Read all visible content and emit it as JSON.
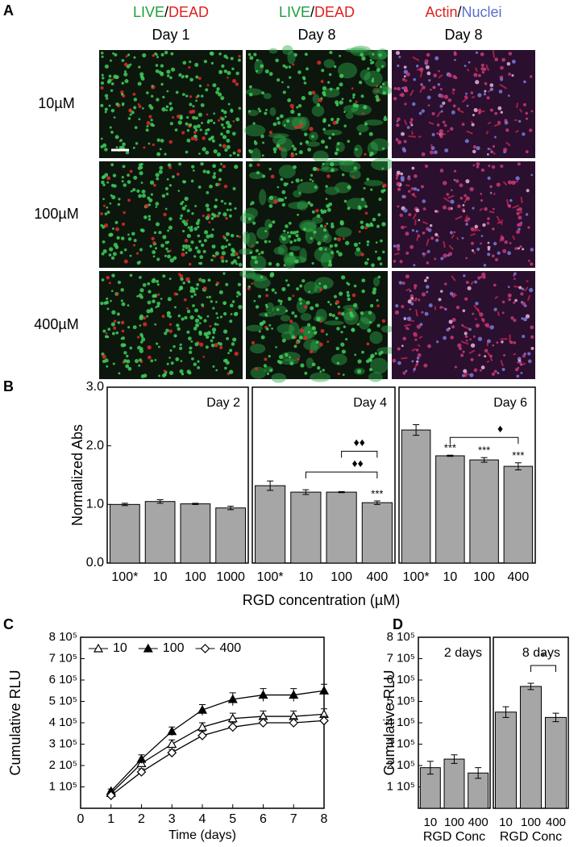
{
  "panel_labels": [
    "A",
    "B",
    "C",
    "D"
  ],
  "panel_a": {
    "columns": [
      {
        "stain": [
          {
            "text": "LIVE",
            "color": "#1f9e3c"
          },
          {
            "text": "/",
            "color": "#000000"
          },
          {
            "text": "DEAD",
            "color": "#e0201c"
          }
        ],
        "day": "Day 1",
        "palette": "live-dead"
      },
      {
        "stain": [
          {
            "text": "LIVE",
            "color": "#1f9e3c"
          },
          {
            "text": "/",
            "color": "#000000"
          },
          {
            "text": "DEAD",
            "color": "#e0201c"
          }
        ],
        "day": "Day 8",
        "palette": "live-dead-spread"
      },
      {
        "stain": [
          {
            "text": "Actin",
            "color": "#e0201c"
          },
          {
            "text": "/",
            "color": "#000000"
          },
          {
            "text": "Nuclei",
            "color": "#5a6fc8"
          }
        ],
        "day": "Day 8",
        "palette": "actin-nuclei"
      }
    ],
    "rows": [
      "10µM",
      "100µM",
      "400µM"
    ]
  },
  "chart_data": [
    {
      "type": "bar",
      "panel": "B",
      "title": "Day 2",
      "ylabel": "Normalized Abs",
      "categories": [
        "100*",
        "10",
        "100",
        "1000"
      ],
      "values": [
        1.0,
        1.05,
        1.01,
        0.94
      ],
      "errors": [
        0.02,
        0.03,
        0.01,
        0.03
      ],
      "color": "#a6a6a6",
      "ylim": [
        0,
        3
      ],
      "yticks": [
        {
          "value": 0,
          "label": "0.0"
        },
        {
          "value": 1,
          "label": "1.0"
        },
        {
          "value": 2,
          "label": "2.0"
        },
        {
          "value": 3,
          "label": "3.0"
        }
      ]
    },
    {
      "type": "bar",
      "panel": "B",
      "title": "Day 4",
      "xlabel": "RGD concentration (µM)",
      "categories": [
        "100*",
        "10",
        "100",
        "400"
      ],
      "values": [
        1.32,
        1.21,
        1.21,
        1.03
      ],
      "errors": [
        0.08,
        0.04,
        0.01,
        0.03
      ],
      "color": "#a6a6a6",
      "ylim": [
        0,
        3
      ],
      "annotations": [
        {
          "index": 3,
          "text": "***"
        }
      ],
      "brackets": [
        {
          "from": 1,
          "to": 3,
          "text": "♦♦"
        },
        {
          "from": 2,
          "to": 3,
          "text": "♦♦"
        }
      ]
    },
    {
      "type": "bar",
      "panel": "B",
      "title": "Day 6",
      "categories": [
        "100*",
        "10",
        "100",
        "400"
      ],
      "values": [
        2.27,
        1.83,
        1.76,
        1.65
      ],
      "errors": [
        0.09,
        0.01,
        0.04,
        0.06
      ],
      "color": "#a6a6a6",
      "ylim": [
        0,
        3
      ],
      "annotations": [
        {
          "index": 1,
          "text": "***"
        },
        {
          "index": 2,
          "text": "***"
        },
        {
          "index": 3,
          "text": "***"
        }
      ],
      "brackets": [
        {
          "from": 1,
          "to": 3,
          "text": "♦"
        }
      ]
    },
    {
      "type": "line",
      "panel": "C",
      "xlabel": "Time (days)",
      "ylabel": "Cumulative RLU",
      "x": [
        1,
        2,
        3,
        4,
        5,
        6,
        7,
        8
      ],
      "xlim": [
        0,
        8
      ],
      "xticks": [
        0,
        1,
        2,
        3,
        4,
        5,
        6,
        7,
        8
      ],
      "ylim": [
        0,
        800000
      ],
      "yticks": [
        {
          "value": 100000,
          "label": "1 10⁵"
        },
        {
          "value": 200000,
          "label": "2 10⁵"
        },
        {
          "value": 300000,
          "label": "3 10⁵"
        },
        {
          "value": 400000,
          "label": "4 10⁵"
        },
        {
          "value": 500000,
          "label": "5 10⁵"
        },
        {
          "value": 600000,
          "label": "6 10⁵"
        },
        {
          "value": 700000,
          "label": "7 10⁵"
        },
        {
          "value": 800000,
          "label": "8 10⁵"
        }
      ],
      "legend": "upper left",
      "series": [
        {
          "name": "10",
          "color": "#000000",
          "marker": "triangle-open",
          "values": [
            70000,
            210000,
            300000,
            380000,
            420000,
            430000,
            430000,
            440000
          ],
          "errors": [
            10000,
            15000,
            20000,
            20000,
            25000,
            25000,
            25000,
            25000
          ]
        },
        {
          "name": "100",
          "color": "#000000",
          "marker": "triangle-filled",
          "values": [
            80000,
            230000,
            360000,
            460000,
            510000,
            530000,
            530000,
            550000
          ],
          "errors": [
            10000,
            20000,
            20000,
            25000,
            30000,
            30000,
            30000,
            30000
          ]
        },
        {
          "name": "400",
          "color": "#000000",
          "marker": "diamond-open",
          "values": [
            60000,
            170000,
            260000,
            340000,
            380000,
            400000,
            400000,
            410000
          ],
          "errors": [
            10000,
            15000,
            15000,
            20000,
            20000,
            20000,
            20000,
            20000
          ]
        }
      ]
    },
    {
      "type": "bar",
      "panel": "D",
      "title": "2 days",
      "ylabel": "Cumulative RLU",
      "xlabel": "RGD Conc",
      "categories": [
        "10",
        "100",
        "400"
      ],
      "values": [
        190000,
        230000,
        165000
      ],
      "errors": [
        30000,
        20000,
        25000
      ],
      "color": "#a6a6a6",
      "ylim": [
        0,
        800000
      ],
      "yticks": [
        {
          "value": 100000,
          "label": "1 10⁵"
        },
        {
          "value": 200000,
          "label": "2 10⁵"
        },
        {
          "value": 300000,
          "label": "3 10⁵"
        },
        {
          "value": 400000,
          "label": "4 10⁵"
        },
        {
          "value": 500000,
          "label": "5 10⁵"
        },
        {
          "value": 600000,
          "label": "6 10⁵"
        },
        {
          "value": 700000,
          "label": "7 10⁵"
        },
        {
          "value": 800000,
          "label": "8 10⁵"
        }
      ]
    },
    {
      "type": "bar",
      "panel": "D",
      "title": "8 days",
      "xlabel": "RGD Conc",
      "categories": [
        "10",
        "100",
        "400"
      ],
      "values": [
        450000,
        570000,
        425000
      ],
      "errors": [
        25000,
        15000,
        20000
      ],
      "color": "#a6a6a6",
      "ylim": [
        0,
        800000
      ],
      "brackets": [
        {
          "from": 1,
          "to": 2,
          "text": "*"
        }
      ]
    }
  ]
}
